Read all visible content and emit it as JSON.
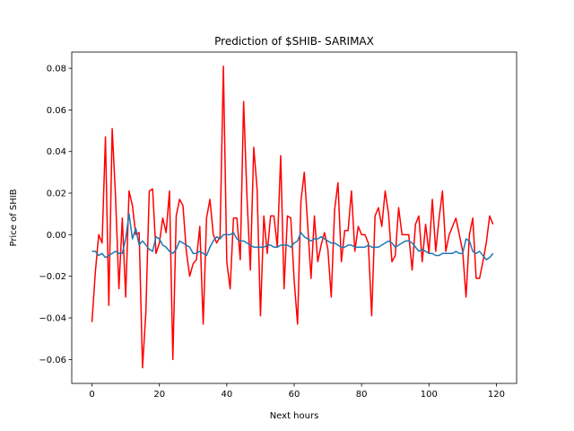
{
  "chart_data": {
    "type": "line",
    "title": "Prediction of $SHIB- SARIMAX",
    "xlabel": "Next hours",
    "ylabel": "Price of SHIB",
    "xlim": [
      -6,
      126
    ],
    "ylim": [
      -0.0715,
      0.0878
    ],
    "xticks": [
      0,
      20,
      40,
      60,
      80,
      100,
      120
    ],
    "xtick_labels": [
      "0",
      "20",
      "40",
      "60",
      "80",
      "100",
      "120"
    ],
    "yticks": [
      -0.06,
      -0.04,
      -0.02,
      0.0,
      0.02,
      0.04,
      0.06,
      0.08
    ],
    "ytick_labels": [
      "−0.06",
      "−0.04",
      "−0.02",
      "0.00",
      "0.02",
      "0.04",
      "0.06",
      "0.08"
    ],
    "grid": false,
    "legend": "none",
    "series": [
      {
        "color": "#ff0000",
        "x": [
          0,
          1,
          2,
          3,
          4,
          5,
          6,
          7,
          8,
          9,
          10,
          11,
          12,
          13,
          14,
          15,
          16,
          17,
          18,
          19,
          20,
          21,
          22,
          23,
          24,
          25,
          26,
          27,
          28,
          29,
          30,
          31,
          32,
          33,
          34,
          35,
          36,
          37,
          38,
          39,
          40,
          41,
          42,
          43,
          44,
          45,
          46,
          47,
          48,
          49,
          50,
          51,
          52,
          53,
          54,
          55,
          56,
          57,
          58,
          59,
          60,
          61,
          62,
          63,
          64,
          65,
          66,
          67,
          68,
          69,
          70,
          71,
          72,
          73,
          74,
          75,
          76,
          77,
          78,
          79,
          80,
          81,
          82,
          83,
          84,
          85,
          86,
          87,
          88,
          89,
          90,
          91,
          92,
          93,
          94,
          95,
          96,
          97,
          98,
          99,
          100,
          101,
          102,
          103,
          104,
          105,
          106,
          107,
          108,
          109,
          110,
          111,
          112,
          113,
          114,
          115,
          116,
          117,
          118,
          119
        ],
        "y": [
          -0.042,
          -0.018,
          0.0,
          -0.004,
          0.047,
          -0.034,
          0.051,
          0.018,
          -0.026,
          0.008,
          -0.03,
          0.021,
          0.014,
          0.0,
          0.001,
          -0.064,
          -0.037,
          0.021,
          0.022,
          -0.009,
          -0.004,
          0.008,
          0.001,
          0.021,
          -0.06,
          0.009,
          0.017,
          0.014,
          -0.008,
          -0.02,
          -0.014,
          -0.012,
          0.004,
          -0.043,
          0.008,
          0.017,
          0.0,
          -0.004,
          -0.001,
          0.081,
          -0.013,
          -0.026,
          0.008,
          0.008,
          -0.012,
          0.064,
          0.018,
          -0.017,
          0.042,
          0.022,
          -0.039,
          0.009,
          -0.009,
          0.009,
          0.009,
          -0.006,
          0.038,
          -0.026,
          0.009,
          0.008,
          -0.022,
          -0.043,
          0.016,
          0.03,
          0.005,
          -0.021,
          0.009,
          -0.013,
          -0.005,
          0.001,
          -0.007,
          -0.03,
          0.012,
          0.025,
          -0.013,
          0.002,
          0.002,
          0.021,
          -0.008,
          0.004,
          0.0,
          0.0,
          -0.004,
          -0.039,
          0.009,
          0.013,
          0.004,
          0.021,
          0.01,
          -0.013,
          -0.01,
          0.013,
          0.0,
          0.0,
          0.0,
          -0.017,
          0.005,
          0.009,
          -0.013,
          0.005,
          -0.009,
          0.017,
          -0.008,
          0.008,
          0.021,
          -0.008,
          0.0,
          0.004,
          0.008,
          0.0,
          -0.008,
          -0.03,
          0.0,
          0.008,
          -0.021,
          -0.021,
          -0.013,
          -0.004,
          0.009,
          0.005
        ]
      },
      {
        "color": "#1f77b4",
        "x": [
          0,
          1,
          2,
          3,
          4,
          5,
          6,
          7,
          8,
          9,
          10,
          11,
          12,
          13,
          14,
          15,
          16,
          17,
          18,
          19,
          20,
          21,
          22,
          23,
          24,
          25,
          26,
          27,
          28,
          29,
          30,
          31,
          32,
          33,
          34,
          35,
          36,
          37,
          38,
          39,
          40,
          41,
          42,
          43,
          44,
          45,
          46,
          47,
          48,
          49,
          50,
          51,
          52,
          53,
          54,
          55,
          56,
          57,
          58,
          59,
          60,
          61,
          62,
          63,
          64,
          65,
          66,
          67,
          68,
          69,
          70,
          71,
          72,
          73,
          74,
          75,
          76,
          77,
          78,
          79,
          80,
          81,
          82,
          83,
          84,
          85,
          86,
          87,
          88,
          89,
          90,
          91,
          92,
          93,
          94,
          95,
          96,
          97,
          98,
          99,
          100,
          101,
          102,
          103,
          104,
          105,
          106,
          107,
          108,
          109,
          110,
          111,
          112,
          113,
          114,
          115,
          116,
          117,
          118,
          119
        ],
        "y": [
          -0.008,
          -0.008,
          -0.01,
          -0.009,
          -0.011,
          -0.01,
          -0.009,
          -0.008,
          -0.009,
          -0.009,
          -0.002,
          0.01,
          -0.002,
          0.003,
          -0.005,
          -0.003,
          -0.005,
          -0.007,
          -0.008,
          -0.001,
          -0.002,
          -0.005,
          -0.006,
          -0.008,
          -0.009,
          -0.007,
          -0.003,
          -0.004,
          -0.005,
          -0.006,
          -0.009,
          -0.009,
          -0.008,
          -0.009,
          -0.01,
          -0.006,
          -0.003,
          -0.001,
          -0.002,
          0.0,
          0.0,
          0.0,
          0.001,
          -0.002,
          -0.003,
          -0.003,
          -0.004,
          -0.005,
          -0.006,
          -0.006,
          -0.006,
          -0.006,
          -0.005,
          -0.005,
          -0.006,
          -0.006,
          -0.005,
          -0.005,
          -0.005,
          -0.006,
          -0.004,
          -0.003,
          0.001,
          -0.001,
          -0.002,
          -0.003,
          -0.002,
          -0.002,
          -0.001,
          -0.002,
          -0.003,
          -0.004,
          -0.004,
          -0.005,
          -0.006,
          -0.006,
          -0.005,
          -0.005,
          -0.006,
          -0.006,
          -0.006,
          -0.006,
          -0.005,
          -0.006,
          -0.006,
          -0.006,
          -0.005,
          -0.004,
          -0.003,
          -0.004,
          -0.006,
          -0.005,
          -0.004,
          -0.003,
          -0.003,
          -0.004,
          -0.006,
          -0.008,
          -0.007,
          -0.008,
          -0.009,
          -0.009,
          -0.01,
          -0.01,
          -0.009,
          -0.009,
          -0.009,
          -0.009,
          -0.008,
          -0.009,
          -0.009,
          -0.002,
          -0.003,
          -0.008,
          -0.009,
          -0.008,
          -0.01,
          -0.012,
          -0.011,
          -0.009
        ]
      }
    ]
  }
}
